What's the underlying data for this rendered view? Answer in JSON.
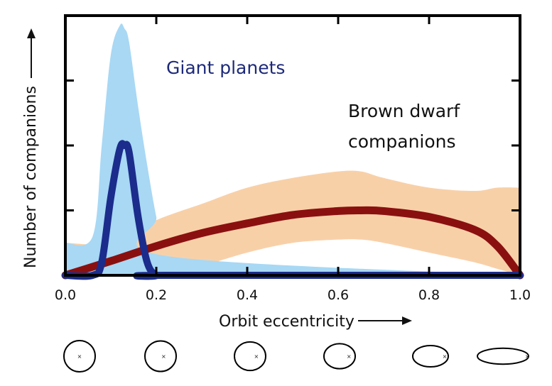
{
  "chart_data": {
    "type": "line",
    "title": "",
    "xlabel": "Orbit eccentricity",
    "ylabel": "Number of companions",
    "xlim": [
      0.0,
      1.0
    ],
    "ylim": [
      0,
      4
    ],
    "x_ticks": [
      "0.0",
      "0.2",
      "0.4",
      "0.6",
      "0.8",
      "1.0"
    ],
    "grid": false,
    "annotations": [
      "Giant planets",
      "Brown dwarf",
      "companions"
    ],
    "colors": {
      "giant_band": "#a8d8f4",
      "giant_line": "#1b2c8c",
      "bd_band": "#f8d0a8",
      "bd_line": "#8a1010"
    },
    "series": [
      {
        "name": "Giant planets",
        "x": [
          0.0,
          0.06,
          0.08,
          0.1,
          0.12,
          0.13,
          0.14,
          0.16,
          0.18,
          0.2,
          0.22,
          1.0
        ],
        "y": [
          0.0,
          0.0,
          0.2,
          1.2,
          1.95,
          2.0,
          1.9,
          0.9,
          0.2,
          0.0,
          0.0,
          0.0
        ],
        "band_upper": [
          0.5,
          0.6,
          2.0,
          3.4,
          3.85,
          3.8,
          3.6,
          2.6,
          1.7,
          0.9,
          0.3,
          0.0
        ],
        "band_lower": [
          0.0,
          0.0,
          0.0,
          0.0,
          0.0,
          0.0,
          0.0,
          0.0,
          0.0,
          0.0,
          0.0,
          0.0
        ]
      },
      {
        "name": "Brown dwarf companions",
        "x": [
          0.0,
          0.1,
          0.2,
          0.3,
          0.4,
          0.5,
          0.6,
          0.65,
          0.7,
          0.8,
          0.9,
          0.95,
          1.0
        ],
        "y": [
          0.0,
          0.22,
          0.45,
          0.65,
          0.8,
          0.93,
          0.99,
          1.0,
          0.99,
          0.9,
          0.7,
          0.45,
          0.0
        ],
        "band_upper": [
          0.5,
          0.5,
          0.85,
          1.1,
          1.35,
          1.5,
          1.6,
          1.6,
          1.5,
          1.35,
          1.3,
          1.35,
          1.35
        ],
        "band_lower": [
          0.0,
          0.0,
          0.05,
          0.15,
          0.35,
          0.5,
          0.55,
          0.55,
          0.5,
          0.35,
          0.2,
          0.1,
          0.0
        ]
      }
    ]
  },
  "orbit_eccentricities": [
    0.0,
    0.2,
    0.4,
    0.6,
    0.8,
    0.95
  ]
}
